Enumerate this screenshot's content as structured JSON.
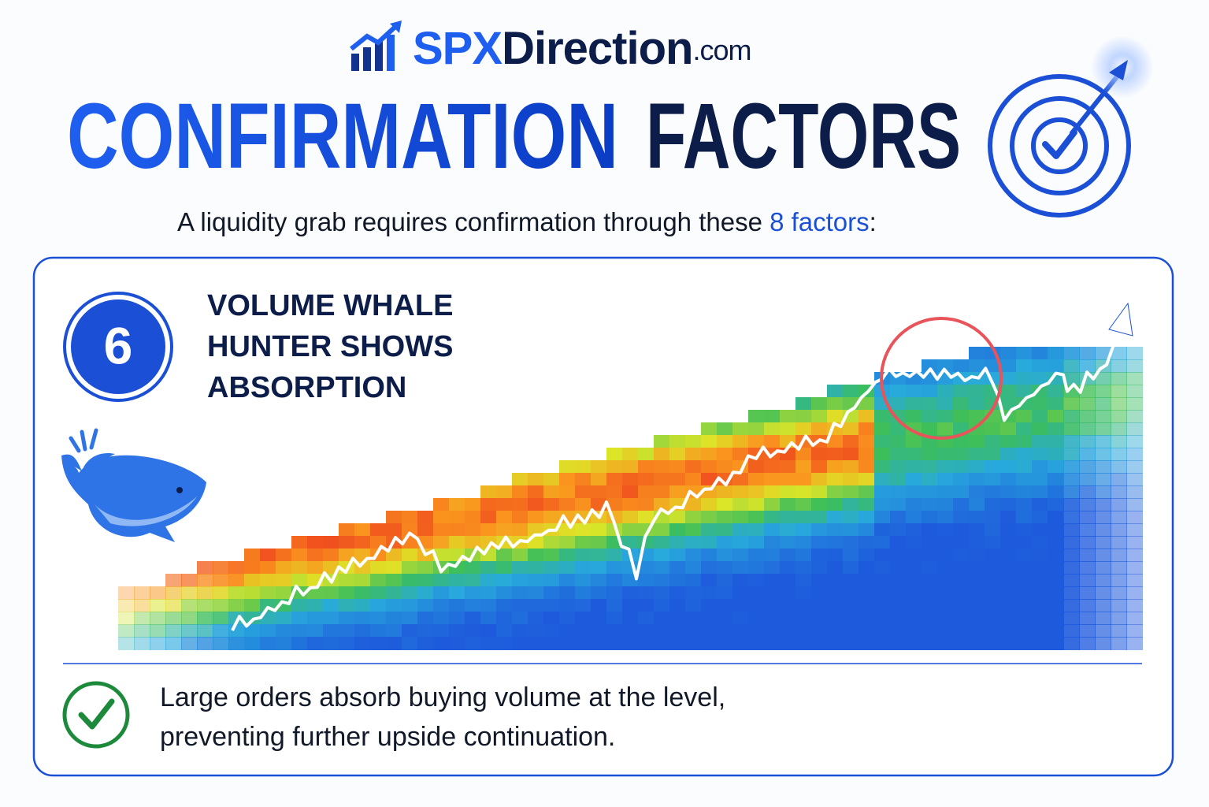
{
  "header": {
    "logo": {
      "brand_a": "SPX",
      "brand_b": "Direction",
      "domain": ".com"
    },
    "title_a": "CONFIRMATION",
    "title_b": "FACTORS",
    "subtitle_a": "A liquidity grab requires confirmation through these ",
    "subtitle_highlight": "8 factors",
    "subtitle_b": ":"
  },
  "card": {
    "number": "6",
    "title_lines": [
      "VOLUME WHALE",
      "HUNTER SHOWS",
      "ABSORPTION"
    ],
    "body_lines": [
      "Large orders absorb buying volume at the level,",
      "preventing further upside continuation."
    ]
  }
}
